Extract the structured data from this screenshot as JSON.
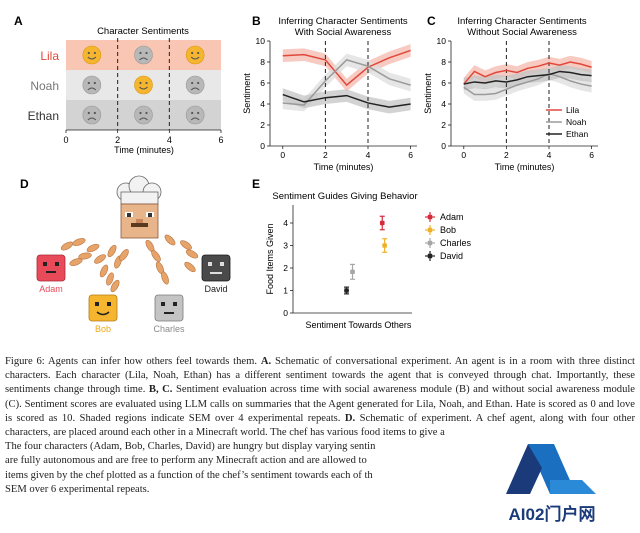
{
  "panels": {
    "a": {
      "letter": "A",
      "title": "Character Sentiments",
      "characters": [
        "Lila",
        "Noah",
        "Ethan"
      ],
      "row_colors": [
        "#f9c6b3",
        "#e8e8e8",
        "#d3d3d3"
      ],
      "faces": [
        [
          "happy",
          "sad",
          "happy"
        ],
        [
          "sad",
          "happy",
          "sad"
        ],
        [
          "sad",
          "sad",
          "sad"
        ]
      ],
      "xticks": [
        "0",
        "2",
        "4",
        "6"
      ],
      "xlabel": "Time (minutes)"
    },
    "b": {
      "letter": "B",
      "title_line1": "Inferring Character Sentiments",
      "title_line2": "With Social Awareness"
    },
    "c": {
      "letter": "C",
      "title_line1": "Inferring Character Sentiments",
      "title_line2": "Without Social Awareness"
    },
    "d": {
      "letter": "D",
      "names": [
        "Adam",
        "Bob",
        "Charles",
        "David"
      ]
    },
    "e": {
      "letter": "E",
      "title": "Sentiment Guides Giving Behavior"
    }
  },
  "chart_data": [
    {
      "type": "line",
      "panel": "B",
      "title": "Inferring Character Sentiments With Social Awareness",
      "xlabel": "Time (minutes)",
      "ylabel": "Sentiment",
      "xlim": [
        -0.6,
        6.3
      ],
      "ylim": [
        0,
        10
      ],
      "xticks": [
        0,
        2,
        4,
        6
      ],
      "yticks": [
        0,
        2,
        4,
        6,
        8,
        10
      ],
      "vlines": [
        2,
        4
      ],
      "x": [
        0,
        1,
        2,
        3,
        4,
        5,
        6
      ],
      "series": [
        {
          "name": "Lila",
          "color": "#e0483a",
          "band": "#f4b8ad",
          "values": [
            8.6,
            8.7,
            8.2,
            5.8,
            7.5,
            8.4,
            9.1
          ]
        },
        {
          "name": "Noah",
          "color": "#9a9a9a",
          "band": "#dddddd",
          "values": [
            4.1,
            3.9,
            6.2,
            8.2,
            7.6,
            6.4,
            5.8
          ]
        },
        {
          "name": "Ethan",
          "color": "#222222",
          "band": "#c4c4c4",
          "values": [
            4.9,
            4.2,
            4.6,
            4.8,
            4.1,
            3.7,
            4.0
          ]
        }
      ]
    },
    {
      "type": "line",
      "panel": "C",
      "title": "Inferring Character Sentiments Without Social Awareness",
      "xlabel": "Time (minutes)",
      "ylabel": "Sentiment",
      "xlim": [
        -0.6,
        6.3
      ],
      "ylim": [
        0,
        10
      ],
      "xticks": [
        0,
        2,
        4,
        6
      ],
      "yticks": [
        0,
        2,
        4,
        6,
        8,
        10
      ],
      "vlines": [
        2,
        4
      ],
      "x": [
        0,
        0.5,
        1,
        1.5,
        2,
        2.5,
        3,
        3.5,
        4,
        4.5,
        5,
        5.5,
        6
      ],
      "legend": [
        "Lila",
        "Noah",
        "Ethan"
      ],
      "legend_position": "bottom-right",
      "series": [
        {
          "name": "Lila",
          "color": "#e0483a",
          "band": "#f4b8ad",
          "values": [
            5.9,
            7.1,
            6.6,
            7.0,
            7.2,
            7.0,
            7.4,
            7.6,
            7.9,
            7.7,
            8.0,
            7.8,
            7.5
          ]
        },
        {
          "name": "Noah",
          "color": "#9a9a9a",
          "band": "#dddddd",
          "values": [
            5.6,
            4.9,
            4.9,
            5.0,
            5.4,
            5.8,
            6.1,
            6.4,
            6.9,
            6.6,
            6.2,
            5.9,
            5.7
          ]
        },
        {
          "name": "Ethan",
          "color": "#222222",
          "band": "#c4c4c4",
          "values": [
            5.9,
            6.1,
            6.0,
            6.2,
            6.1,
            6.3,
            6.6,
            6.7,
            6.8,
            7.1,
            7.0,
            6.8,
            6.7
          ]
        }
      ]
    },
    {
      "type": "scatter",
      "panel": "E",
      "title": "Sentiment Guides Giving Behavior",
      "xlabel": "Sentiment Towards Others",
      "ylabel": "Food Items Given",
      "xlim": [
        0,
        10
      ],
      "ylim": [
        0,
        4.8
      ],
      "yticks": [
        0,
        1,
        2,
        3,
        4
      ],
      "legend_position": "right",
      "series": [
        {
          "name": "Adam",
          "color": "#d42a3a",
          "x": 7.5,
          "y": 4.0,
          "yerr": 0.3,
          "xerr": 0.2
        },
        {
          "name": "Bob",
          "color": "#f0b12a",
          "x": 7.7,
          "y": 3.0,
          "yerr": 0.3,
          "xerr": 0.2
        },
        {
          "name": "Charles",
          "color": "#a6a6a6",
          "x": 5.0,
          "y": 1.83,
          "yerr": 0.33,
          "xerr": 0.2
        },
        {
          "name": "David",
          "color": "#222222",
          "x": 4.5,
          "y": 1.0,
          "yerr": 0.15,
          "xerr": 0.2
        }
      ]
    }
  ],
  "caption": {
    "label": "Figure 6:",
    "s1": "Agents can infer how others feel towards them.",
    "a_label": "A.",
    "a_text": "Schematic of conversational experiment. An agent is in a room with three distinct characters. Each character (Lila, Noah, Ethan) has a different sentiment towards the agent that is conveyed through chat. Importantly, these sentiments change through time.",
    "bc_label": "B, C.",
    "bc_text": "Sentiment evaluation across time with social awareness module (B) and without social awareness module (C). Sentiment scores are evaluated using LLM calls on summaries that the Agent generated for Lila, Noah, and Ethan. Hate is scored as 0 and love is scored as 10. Shaded regions indicate SEM over 4 experimental repeats.",
    "d_label": "D.",
    "d_text": "Schematic of experiment. A chef agent, along with four other characters, are placed around each other in a Minecraft world. The chef has various food items to give a",
    "line2": "The four characters (Adam, Bob, Charles, David) are hungry but display varying sentin",
    "line3": "are fully autonomous and are free to perform any Minecraft action and are allowed to",
    "line4": "items given by the chef plotted as a function of the chef’s sentiment towards each of th",
    "line5": "SEM over 6 experimental repeats."
  },
  "watermark": {
    "text": "AI02门户网"
  }
}
